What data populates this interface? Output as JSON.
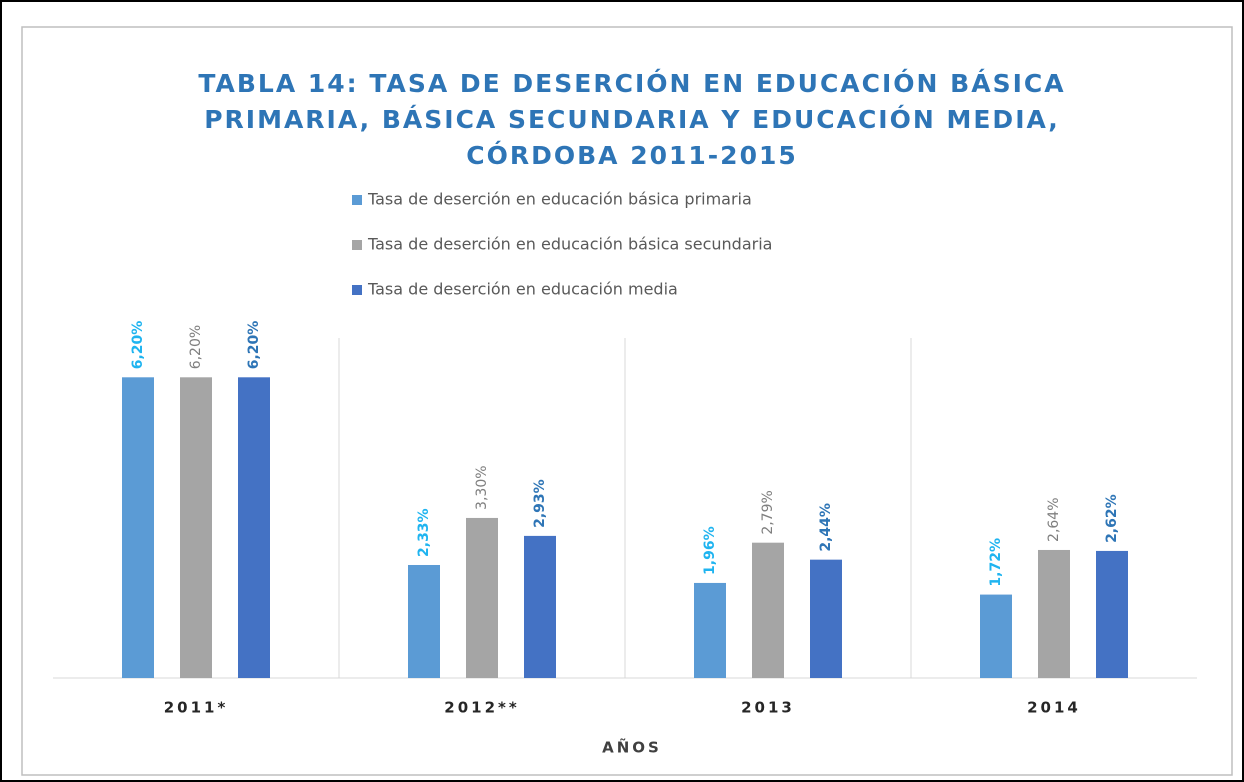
{
  "chart_data": {
    "type": "bar",
    "title": "TABLA 14: TASA DE DESERCIÓN EN EDUCACIÓN BÁSICA PRIMARIA, BÁSICA SECUNDARIA Y EDUCACIÓN MEDIA, CÓRDOBA 2011-2015",
    "x_label": "AÑOS",
    "categories": [
      "2011*",
      "2012**",
      "2013",
      "2014"
    ],
    "series": [
      {
        "name": "Tasa de deserción en educación básica primaria",
        "color": "#5b9bd5",
        "label_color": "#1fb4f0",
        "values": [
          6.2,
          2.33,
          1.96,
          1.72
        ],
        "value_labels": [
          "6,20%",
          "2,33%",
          "1,96%",
          "1,72%"
        ]
      },
      {
        "name": "Tasa de deserción en educación básica secundaria",
        "color": "#a5a5a5",
        "label_color": "#7f7f7f",
        "values": [
          6.2,
          3.3,
          2.79,
          2.64
        ],
        "value_labels": [
          "6,20%",
          "3,30%",
          "2,79%",
          "2,64%"
        ]
      },
      {
        "name": "Tasa de deserción en educación media",
        "color": "#4472c4",
        "label_color": "#2e75b6",
        "values": [
          6.2,
          2.93,
          2.44,
          2.62
        ],
        "value_labels": [
          "6,20%",
          "2,93%",
          "2,44%",
          "2,62%"
        ]
      }
    ],
    "legend": "top"
  }
}
